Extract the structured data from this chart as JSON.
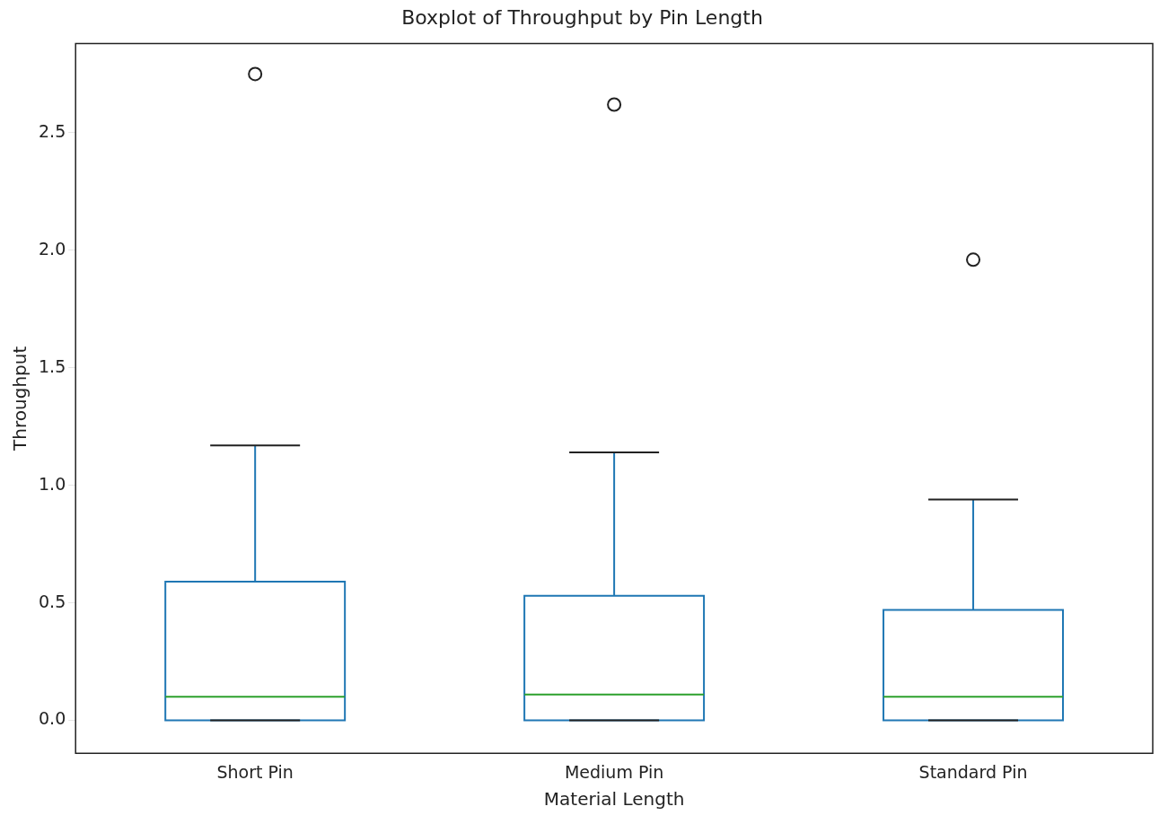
{
  "chart_data": {
    "type": "box",
    "title": "Boxplot of Throughput by Pin Length",
    "xlabel": "Material Length",
    "ylabel": "Throughput",
    "categories": [
      "Short Pin",
      "Medium Pin",
      "Standard Pin"
    ],
    "series": [
      {
        "color": "#1f77b4",
        "boxes": [
          {
            "low": 0,
            "q1": 0,
            "median": 0.1,
            "q3": 0.59,
            "high": 1.17,
            "outliers": [
              2.75
            ]
          },
          {
            "low": 0,
            "q1": 0,
            "median": 0.11,
            "q3": 0.53,
            "high": 1.14,
            "outliers": [
              2.62
            ]
          },
          {
            "low": 0,
            "q1": 0,
            "median": 0.1,
            "q3": 0.47,
            "high": 0.94,
            "outliers": [
              1.96
            ]
          }
        ]
      }
    ],
    "ylim": [
      -0.14,
      2.88
    ],
    "yticks": [
      {
        "value": 0,
        "label": "0.0"
      },
      0.5,
      {
        "value": 1,
        "label": "1.0"
      },
      1.5,
      {
        "value": 2,
        "label": "2.0"
      },
      2.5
    ],
    "grid": false,
    "legend": false
  }
}
